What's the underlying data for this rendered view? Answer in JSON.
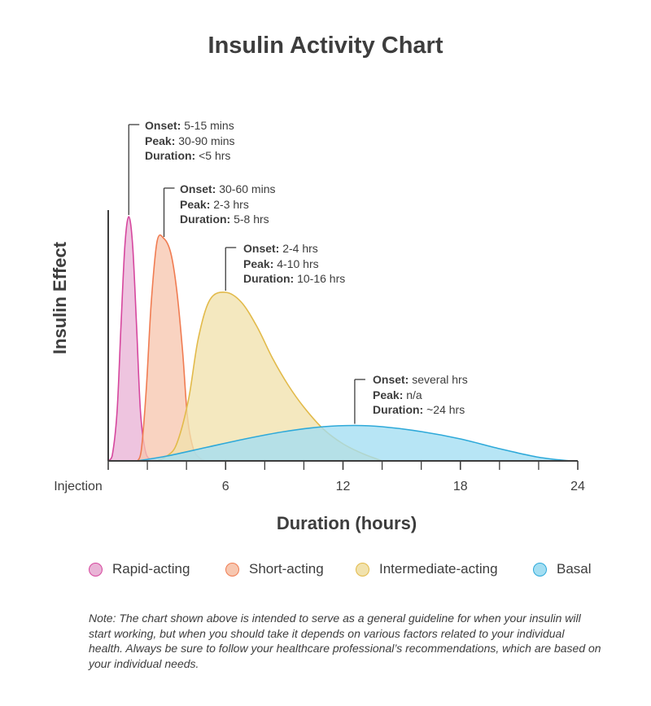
{
  "chart_data": {
    "type": "area",
    "title": "Insulin Activity Chart",
    "xlabel": "Duration (hours)",
    "ylabel": "Insulin Effect",
    "xlim": [
      0,
      24
    ],
    "ylim": [
      0,
      1
    ],
    "x_ticks": [
      {
        "value": 0,
        "label": "Injection"
      },
      {
        "value": 6,
        "label": "6"
      },
      {
        "value": 12,
        "label": "12"
      },
      {
        "value": 18,
        "label": "18"
      },
      {
        "value": 24,
        "label": "24"
      }
    ],
    "minor_ticks": [
      2,
      4,
      8,
      10,
      14,
      16,
      20,
      22
    ],
    "series": [
      {
        "name": "Rapid-acting",
        "color": "#d6479e",
        "fill": "#e9b3d6",
        "peak_x": 1.05,
        "points": [
          [
            0,
            0
          ],
          [
            0.2,
            0.02
          ],
          [
            0.45,
            0.2
          ],
          [
            0.65,
            0.55
          ],
          [
            0.85,
            0.88
          ],
          [
            1.05,
            1.0
          ],
          [
            1.25,
            0.88
          ],
          [
            1.45,
            0.55
          ],
          [
            1.65,
            0.2
          ],
          [
            1.9,
            0.04
          ],
          [
            2.2,
            0.005
          ],
          [
            2.6,
            0
          ]
        ],
        "onset": "5-15 mins",
        "peak": "30-90 mins",
        "duration": "<5 hrs"
      },
      {
        "name": "Short-acting",
        "color": "#f07c52",
        "fill": "#f7c7b0",
        "peak_x": 2.85,
        "points": [
          [
            1.5,
            0
          ],
          [
            1.7,
            0.05
          ],
          [
            1.95,
            0.3
          ],
          [
            2.2,
            0.65
          ],
          [
            2.5,
            0.9
          ],
          [
            2.85,
            0.91
          ],
          [
            3.2,
            0.85
          ],
          [
            3.5,
            0.7
          ],
          [
            3.8,
            0.45
          ],
          [
            4.05,
            0.18
          ],
          [
            4.35,
            0.05
          ],
          [
            4.7,
            0.01
          ],
          [
            5.0,
            0
          ]
        ],
        "onset": "30-60 mins",
        "peak": "2-3 hrs",
        "duration": "5-8 hrs"
      },
      {
        "name": "Intermediate-acting",
        "color": "#e2ba4a",
        "fill": "#f1e2ad",
        "peak_x": 6.0,
        "points": [
          [
            2.5,
            0
          ],
          [
            3,
            0.02
          ],
          [
            3.5,
            0.07
          ],
          [
            4.1,
            0.25
          ],
          [
            4.6,
            0.5
          ],
          [
            5.2,
            0.66
          ],
          [
            6.0,
            0.69
          ],
          [
            6.8,
            0.65
          ],
          [
            7.6,
            0.55
          ],
          [
            8.4,
            0.42
          ],
          [
            9.2,
            0.31
          ],
          [
            10,
            0.22
          ],
          [
            11,
            0.13
          ],
          [
            12,
            0.07
          ],
          [
            13,
            0.03
          ],
          [
            14,
            0
          ]
        ],
        "onset": "2-4 hrs",
        "peak": "4-10 hrs",
        "duration": "10-16 hrs"
      },
      {
        "name": "Basal",
        "color": "#2ea9d9",
        "fill": "#a3def2",
        "peak_x": 12.6,
        "points": [
          [
            1.5,
            0
          ],
          [
            3,
            0.02
          ],
          [
            5,
            0.055
          ],
          [
            7,
            0.09
          ],
          [
            9,
            0.12
          ],
          [
            11,
            0.14
          ],
          [
            12.6,
            0.145
          ],
          [
            14,
            0.14
          ],
          [
            16,
            0.12
          ],
          [
            18,
            0.09
          ],
          [
            20,
            0.05
          ],
          [
            22,
            0.015
          ],
          [
            23.6,
            0
          ]
        ],
        "onset": "several hrs",
        "peak": "n/a",
        "duration": "~24 hrs"
      }
    ]
  },
  "labels": {
    "onset": "Onset:",
    "peak": "Peak:",
    "duration": "Duration:"
  },
  "note": "Note: The chart shown above is intended to serve as a general guideline for when your insulin will start working, but when you should take it depends on various factors related to your individual health. Always be sure to follow your healthcare professional’s recommendations, which are based on your individual needs."
}
